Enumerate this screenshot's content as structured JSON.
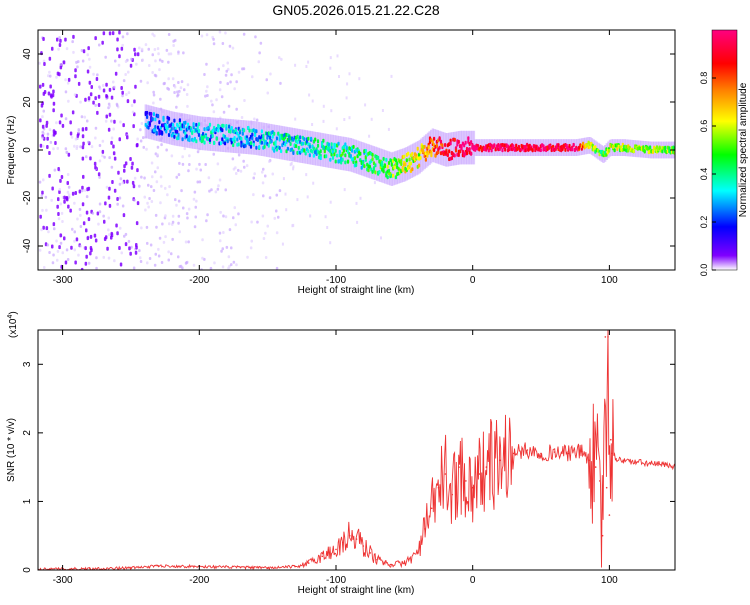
{
  "title": "GN05.2026.015.21.22.C28",
  "chart_data": [
    {
      "type": "heatmap",
      "panel": "top",
      "xlabel": "Height of straight line (km)",
      "ylabel": "Frequency (Hz)",
      "xlim": [
        -318,
        148
      ],
      "ylim": [
        -50,
        50
      ],
      "xticks": [
        -300,
        -200,
        -100,
        0,
        100
      ],
      "yticks": [
        -40,
        -20,
        0,
        20,
        40
      ],
      "colorbar": {
        "label": "Normalized spectral amplitude",
        "range": [
          0,
          1
        ],
        "ticks": [
          0.0,
          0.2,
          0.4,
          0.6,
          0.8
        ],
        "tick_labels": [
          "0.0",
          "0.2",
          "0.4",
          "0.6",
          "0.8"
        ],
        "colors": [
          "#ffffff",
          "#8000ff",
          "#0000ff",
          "#00ffff",
          "#00ff00",
          "#ffff00",
          "#ff8000",
          "#ff0000",
          "#ff0080"
        ]
      },
      "ridge": {
        "x": [
          -240,
          -220,
          -200,
          -180,
          -160,
          -140,
          -120,
          -100,
          -90,
          -80,
          -70,
          -60,
          -50,
          -40,
          -30,
          -20,
          -10,
          0,
          20,
          40,
          60,
          75,
          85,
          90,
          95,
          100,
          110,
          130,
          148
        ],
        "y": [
          12,
          9,
          7,
          6,
          5,
          3,
          1,
          -1,
          -2,
          -4,
          -6,
          -8,
          -6,
          -3,
          2,
          0,
          1,
          1,
          1,
          1,
          1,
          1,
          2,
          0,
          -2,
          1,
          1,
          0,
          0
        ],
        "amplitude": [
          0.2,
          0.25,
          0.3,
          0.3,
          0.3,
          0.35,
          0.35,
          0.4,
          0.4,
          0.4,
          0.45,
          0.5,
          0.6,
          0.6,
          0.8,
          0.9,
          0.95,
          0.95,
          0.95,
          0.95,
          0.95,
          0.95,
          0.6,
          0.5,
          0.45,
          0.6,
          0.55,
          0.55,
          0.55
        ]
      },
      "noise_region_x": [
        -318,
        -140
      ]
    },
    {
      "type": "line",
      "panel": "bottom",
      "xlabel": "Height of straight line (km)",
      "ylabel": "SNR (10 * v/v)",
      "multiplier": "(x10",
      "multiplier_exp": "4",
      "xlim": [
        -318,
        148
      ],
      "ylim": [
        0,
        3.5
      ],
      "xticks": [
        -300,
        -200,
        -100,
        0,
        100
      ],
      "yticks": [
        0,
        1,
        2,
        3
      ],
      "series": [
        {
          "color": "#ee3333",
          "x": [
            -318,
            -280,
            -250,
            -230,
            -200,
            -170,
            -150,
            -130,
            -120,
            -110,
            -100,
            -95,
            -90,
            -85,
            -80,
            -75,
            -70,
            -60,
            -50,
            -40,
            -35,
            -30,
            -25,
            -20,
            -15,
            -10,
            -5,
            0,
            5,
            10,
            20,
            30,
            40,
            50,
            60,
            70,
            80,
            85,
            90,
            93,
            95,
            97,
            98,
            99,
            100,
            101,
            102,
            105,
            110,
            120,
            130,
            148
          ],
          "y": [
            0.01,
            0.02,
            0.03,
            0.06,
            0.05,
            0.04,
            0.03,
            0.05,
            0.1,
            0.2,
            0.3,
            0.4,
            0.5,
            0.45,
            0.35,
            0.25,
            0.15,
            0.08,
            0.1,
            0.25,
            0.6,
            0.9,
            1.2,
            1.4,
            1.1,
            1.5,
            1.3,
            1.2,
            1.4,
            1.5,
            1.6,
            1.7,
            1.75,
            1.7,
            1.72,
            1.7,
            1.73,
            1.6,
            1.5,
            1.3,
            0.5,
            3.4,
            1.2,
            3.4,
            0.8,
            1.9,
            1.7,
            1.62,
            1.6,
            1.57,
            1.55,
            1.52
          ]
        }
      ]
    }
  ]
}
